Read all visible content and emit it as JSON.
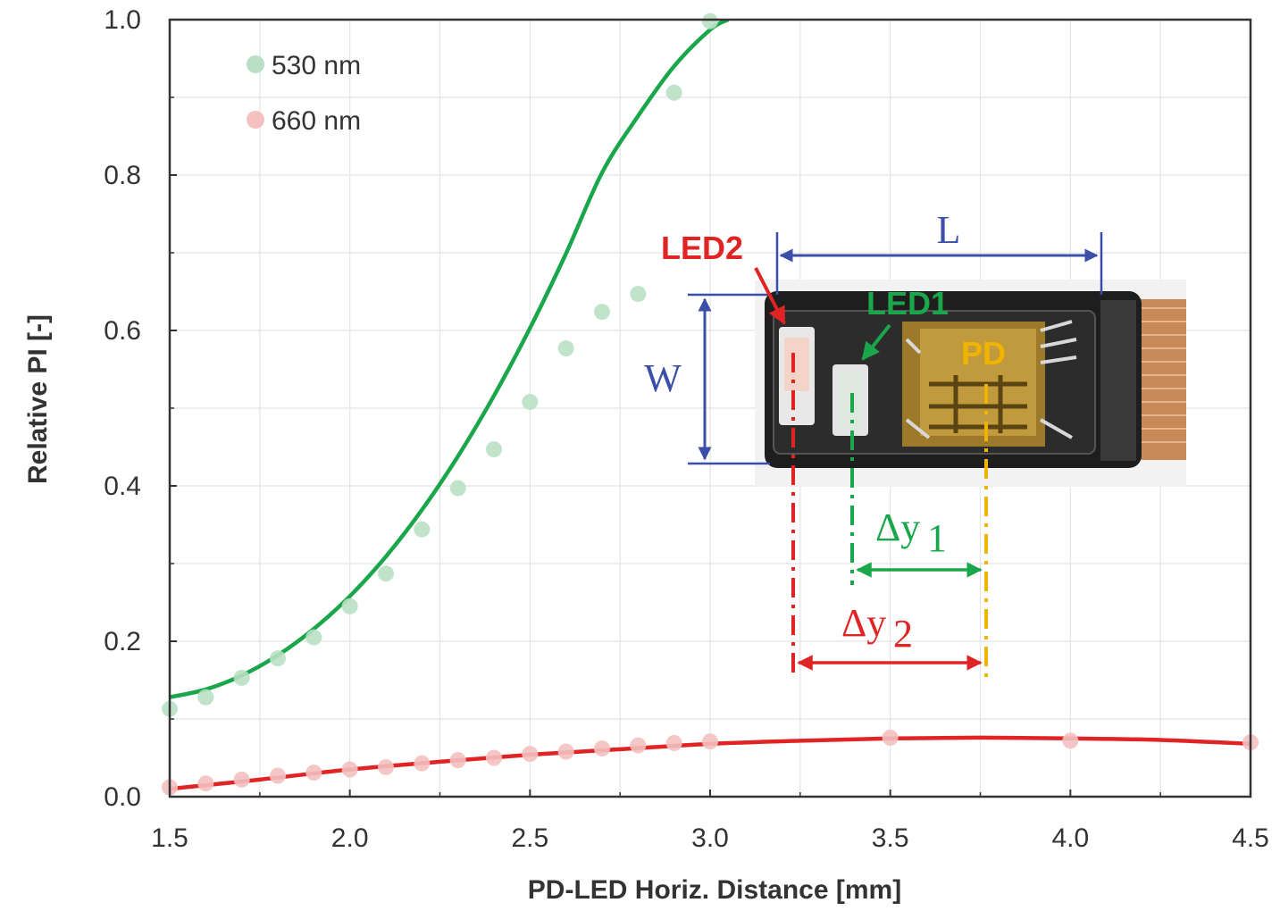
{
  "chart_data": {
    "type": "scatter",
    "xlabel": "PD-LED Horiz. Distance [mm]",
    "ylabel": "Relative PI [-]",
    "xlim": [
      1.5,
      4.5
    ],
    "ylim": [
      0.0,
      1.0
    ],
    "x_ticks": [
      "1.5",
      "2.0",
      "2.5",
      "3.0",
      "3.5",
      "4.0",
      "4.5"
    ],
    "y_ticks": [
      "0.0",
      "0.2",
      "0.4",
      "0.6",
      "0.8",
      "1.0"
    ],
    "grid": true,
    "legend_position": "top-left",
    "series": [
      {
        "name": "530 nm",
        "color": "#1aa64a",
        "point_color": "#b9e0c4",
        "points": [
          [
            1.5,
            0.113
          ],
          [
            1.6,
            0.128
          ],
          [
            1.7,
            0.153
          ],
          [
            1.8,
            0.178
          ],
          [
            1.9,
            0.205
          ],
          [
            2.0,
            0.245
          ],
          [
            2.1,
            0.287
          ],
          [
            2.2,
            0.344
          ],
          [
            2.3,
            0.397
          ],
          [
            2.4,
            0.447
          ],
          [
            2.5,
            0.508
          ],
          [
            2.6,
            0.577
          ],
          [
            2.7,
            0.624
          ],
          [
            2.8,
            0.647
          ],
          [
            2.9,
            0.906
          ],
          [
            3.0,
            0.998
          ]
        ],
        "fit": [
          [
            1.5,
            0.128
          ],
          [
            1.6,
            0.138
          ],
          [
            1.7,
            0.156
          ],
          [
            1.8,
            0.182
          ],
          [
            1.9,
            0.216
          ],
          [
            2.0,
            0.258
          ],
          [
            2.1,
            0.309
          ],
          [
            2.2,
            0.369
          ],
          [
            2.3,
            0.438
          ],
          [
            2.4,
            0.516
          ],
          [
            2.5,
            0.603
          ],
          [
            2.6,
            0.699
          ],
          [
            2.7,
            0.803
          ],
          [
            2.8,
            0.876
          ],
          [
            2.9,
            0.94
          ],
          [
            3.0,
            0.987
          ],
          [
            3.05,
            1.0
          ]
        ]
      },
      {
        "name": "660 nm",
        "color": "#e02424",
        "point_color": "#f4c0c0",
        "points": [
          [
            1.5,
            0.012
          ],
          [
            1.6,
            0.017
          ],
          [
            1.7,
            0.022
          ],
          [
            1.8,
            0.027
          ],
          [
            1.9,
            0.031
          ],
          [
            2.0,
            0.035
          ],
          [
            2.1,
            0.038
          ],
          [
            2.2,
            0.043
          ],
          [
            2.3,
            0.047
          ],
          [
            2.4,
            0.05
          ],
          [
            2.5,
            0.055
          ],
          [
            2.6,
            0.058
          ],
          [
            2.7,
            0.062
          ],
          [
            2.8,
            0.066
          ],
          [
            2.9,
            0.069
          ],
          [
            3.0,
            0.071
          ],
          [
            3.5,
            0.076
          ],
          [
            4.0,
            0.072
          ],
          [
            4.5,
            0.07
          ]
        ],
        "fit": [
          [
            1.5,
            0.01
          ],
          [
            1.75,
            0.022
          ],
          [
            2.0,
            0.035
          ],
          [
            2.25,
            0.045
          ],
          [
            2.5,
            0.054
          ],
          [
            2.75,
            0.061
          ],
          [
            3.0,
            0.068
          ],
          [
            3.25,
            0.072
          ],
          [
            3.5,
            0.075
          ],
          [
            3.75,
            0.076
          ],
          [
            4.0,
            0.075
          ],
          [
            4.25,
            0.073
          ],
          [
            4.5,
            0.068
          ]
        ]
      }
    ],
    "inset": {
      "labels": {
        "L": "L",
        "W": "W",
        "led2": "LED2",
        "led1": "LED1",
        "pd": "PD",
        "dy1": "Δy",
        "dy1_sub": "1",
        "dy2": "Δy",
        "dy2_sub": "2"
      },
      "colors": {
        "blue": "#3b4fa8",
        "red": "#e02424",
        "green": "#1aa64a",
        "yellow": "#f0b400"
      }
    }
  }
}
